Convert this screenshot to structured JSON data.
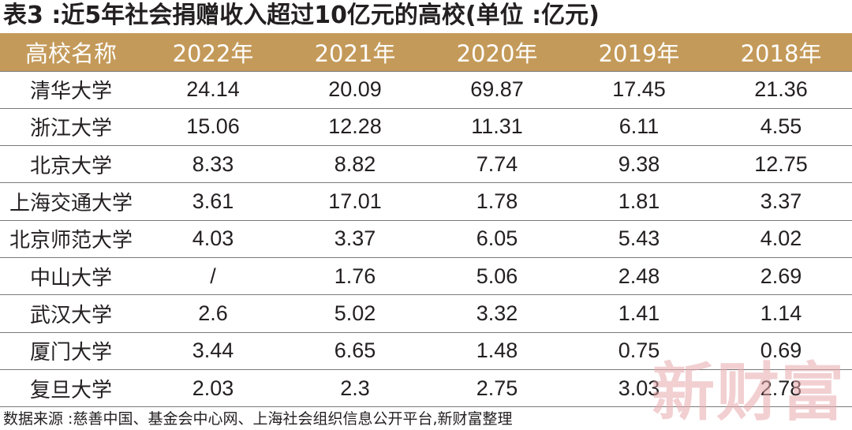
{
  "title": "表3 :近5年社会捐赠收入超过10亿元的高校(单位 :亿元)",
  "source": "数据来源 :慈善中国、基金会中心网、上海社会组织信息公开平台,新财富整理",
  "watermark": "新财富",
  "colors": {
    "header_bg": "#c49a5a",
    "header_text": "#ffffff",
    "watermark": "#e8a9ad"
  },
  "chart_data": {
    "type": "table",
    "title": "表3 :近5年社会捐赠收入超过10亿元的高校(单位 :亿元)",
    "columns": [
      "高校名称",
      "2022年",
      "2021年",
      "2020年",
      "2019年",
      "2018年"
    ],
    "rows": [
      [
        "清华大学",
        "24.14",
        "20.09",
        "69.87",
        "17.45",
        "21.36"
      ],
      [
        "浙江大学",
        "15.06",
        "12.28",
        "11.31",
        "6.11",
        "4.55"
      ],
      [
        "北京大学",
        "8.33",
        "8.82",
        "7.74",
        "9.38",
        "12.75"
      ],
      [
        "上海交通大学",
        "3.61",
        "17.01",
        "1.78",
        "1.81",
        "3.37"
      ],
      [
        "北京师范大学",
        "4.03",
        "3.37",
        "6.05",
        "5.43",
        "4.02"
      ],
      [
        "中山大学",
        "/",
        "1.76",
        "5.06",
        "2.48",
        "2.69"
      ],
      [
        "武汉大学",
        "2.6",
        "5.02",
        "3.32",
        "1.41",
        "1.14"
      ],
      [
        "厦门大学",
        "3.44",
        "6.65",
        "1.48",
        "0.75",
        "0.69"
      ],
      [
        "复旦大学",
        "2.03",
        "2.3",
        "2.75",
        "3.03",
        "2.78"
      ]
    ]
  }
}
